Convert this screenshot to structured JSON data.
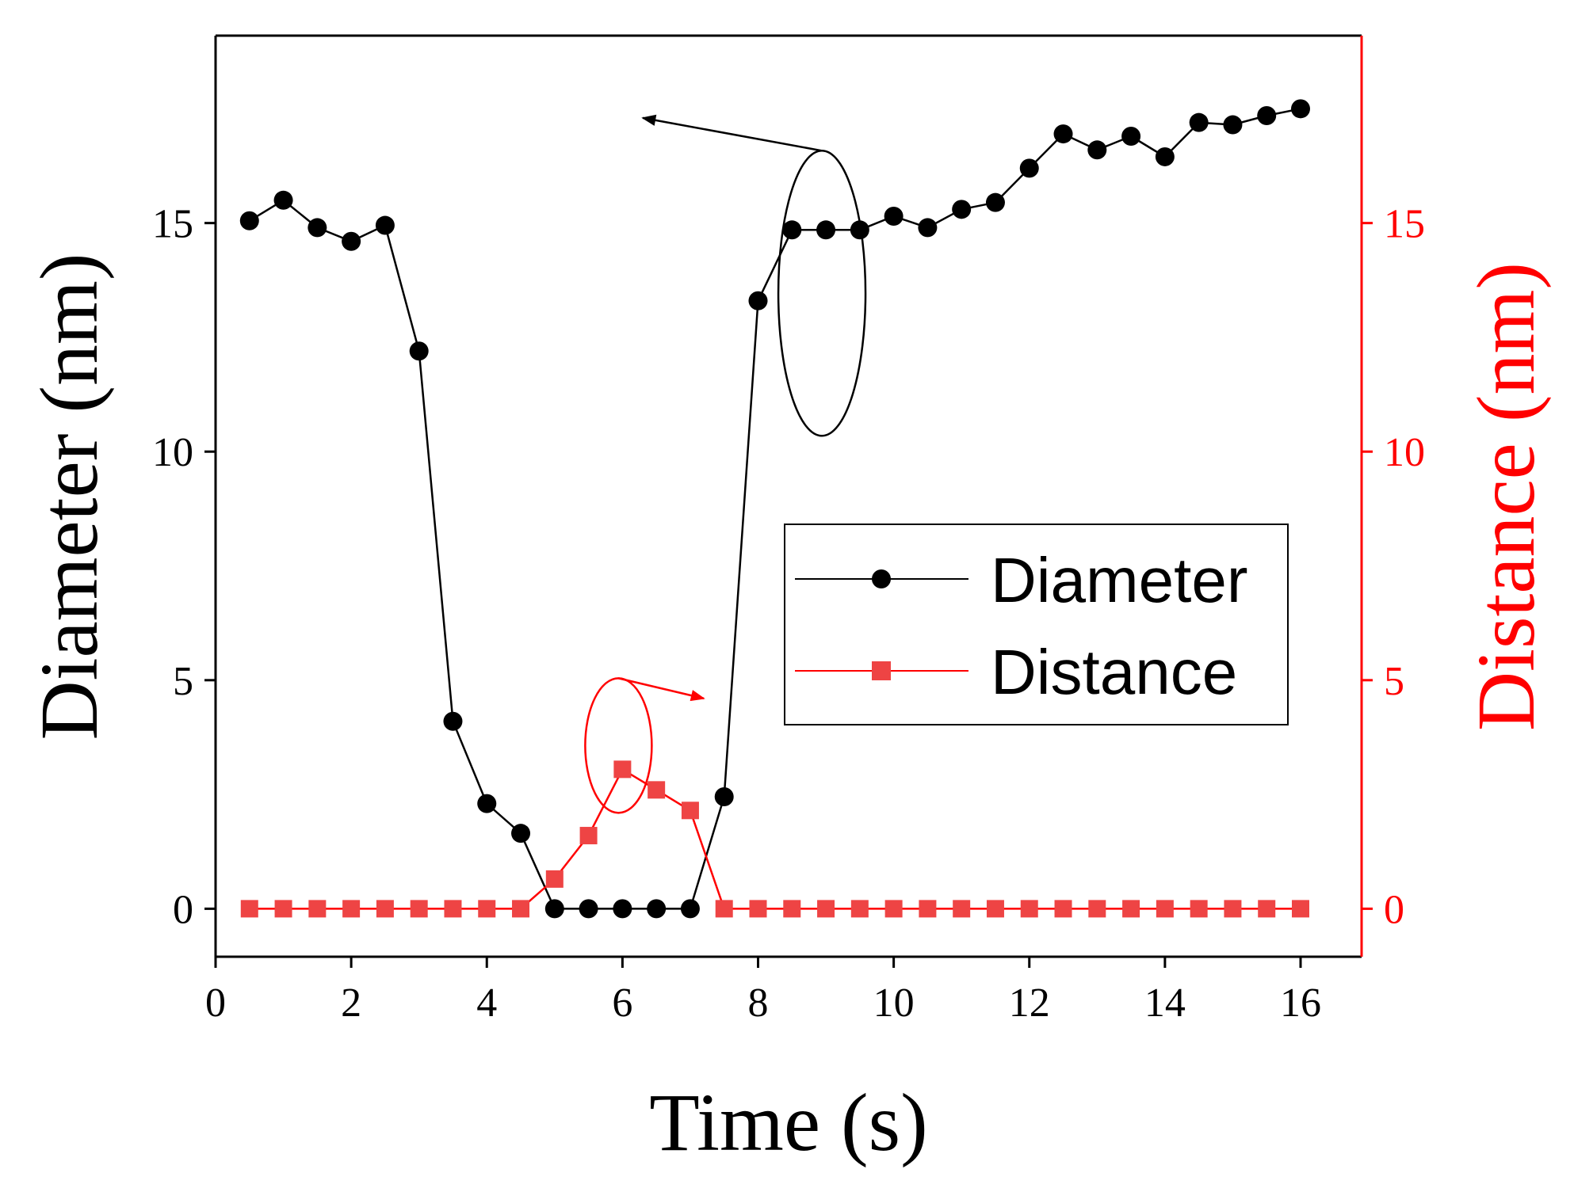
{
  "chart_data": {
    "type": "line",
    "title": "",
    "xlabel": "Time (s)",
    "ylabel": "Diameter (nm)",
    "y2label": "Distance (nm)",
    "xlim": [
      0,
      16.9
    ],
    "ylim": [
      -1.05,
      19.1
    ],
    "y2lim": [
      -1.05,
      19.1
    ],
    "xticks": [
      "0",
      "2",
      "4",
      "6",
      "8",
      "10",
      "12",
      "14",
      "16"
    ],
    "yticks": [
      "0",
      "5",
      "10",
      "15"
    ],
    "y2ticks": [
      "0",
      "5",
      "10",
      "15"
    ],
    "grid": false,
    "legend_position": "center-right",
    "colors": {
      "Diameter": "#000000",
      "Distance": "#ff0000",
      "distance_marker": "#ee4444"
    },
    "series": [
      {
        "name": "Diameter",
        "axis": "left",
        "marker": "circle",
        "x": [
          0.5,
          1,
          1.5,
          2,
          2.5,
          3,
          3.5,
          4,
          4.5,
          5,
          5.5,
          6,
          6.5,
          7,
          7.5,
          8,
          8.5,
          9,
          9.5,
          10,
          10.5,
          11,
          11.5,
          12,
          12.5,
          13,
          13.5,
          14,
          14.5,
          15,
          15.5,
          16
        ],
        "values": [
          15.05,
          15.5,
          14.9,
          14.6,
          14.95,
          12.2,
          4.1,
          2.3,
          1.65,
          0,
          0,
          0,
          0,
          0,
          2.45,
          13.3,
          14.85,
          14.85,
          14.85,
          15.15,
          14.9,
          15.3,
          15.45,
          16.2,
          16.95,
          16.6,
          16.9,
          16.45,
          17.2,
          17.15,
          17.35,
          17.5
        ]
      },
      {
        "name": "Distance",
        "axis": "right",
        "marker": "square",
        "x": [
          0.5,
          1,
          1.5,
          2,
          2.5,
          3,
          3.5,
          4,
          4.5,
          5,
          5.5,
          6,
          6.5,
          7,
          7.5,
          8,
          8.5,
          9,
          9.5,
          10,
          10.5,
          11,
          11.5,
          12,
          12.5,
          13,
          13.5,
          14,
          14.5,
          15,
          15.5,
          16
        ],
        "values": [
          0,
          0,
          0,
          0,
          0,
          0,
          0,
          0,
          0,
          0.65,
          1.6,
          3.05,
          2.6,
          2.15,
          0,
          0,
          0,
          0,
          0,
          0,
          0,
          0,
          0,
          0,
          0,
          0,
          0,
          0,
          0,
          0,
          0,
          0
        ]
      }
    ],
    "annotations": [
      {
        "type": "ellipse-arrow",
        "series": "Diameter",
        "target_x": 9,
        "target_y": 14.85,
        "points_to": "left axis",
        "arrow_tip_x": 6.3,
        "arrow_tip_y": 17.3
      },
      {
        "type": "ellipse-arrow",
        "series": "Distance",
        "target_x": 6,
        "target_y": 3.05,
        "points_to": "right axis",
        "arrow_tip_x": 7.2,
        "arrow_tip_y": 4.6
      }
    ]
  }
}
